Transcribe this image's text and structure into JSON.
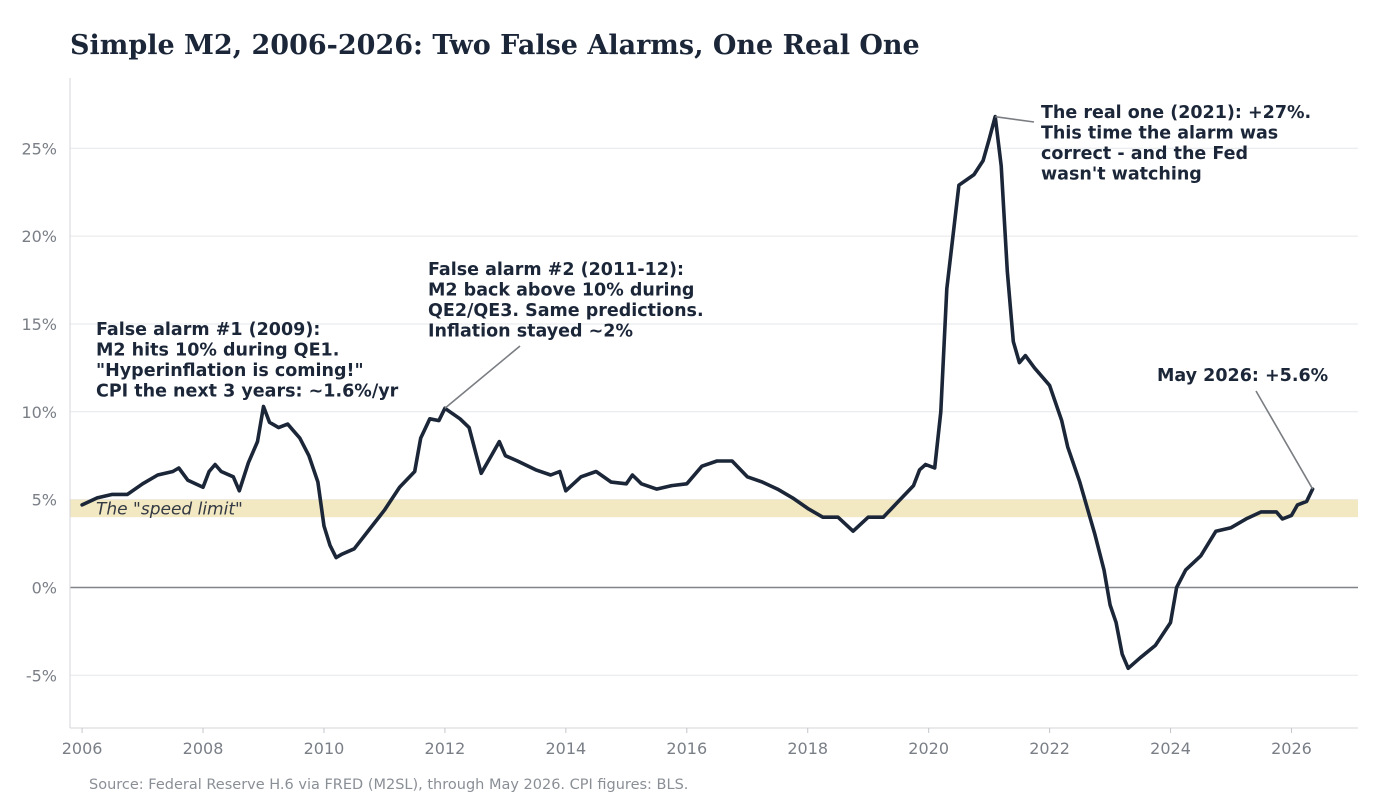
{
  "chart_data": {
    "type": "line",
    "title": "Simple M2, 2006-2026: Two False Alarms, One Real One",
    "xlabel": "",
    "ylabel": "",
    "xlim": [
      2005.8,
      2027.1
    ],
    "ylim": [
      -8,
      29
    ],
    "x_ticks": [
      2006,
      2008,
      2010,
      2012,
      2014,
      2016,
      2018,
      2020,
      2022,
      2024,
      2026
    ],
    "x_tick_labels": [
      "2006",
      "2008",
      "2010",
      "2012",
      "2014",
      "2016",
      "2018",
      "2020",
      "2022",
      "2024",
      "2026"
    ],
    "y_ticks": [
      -5,
      0,
      5,
      10,
      15,
      20,
      25
    ],
    "y_tick_labels": [
      "-5%",
      "0%",
      "5%",
      "10%",
      "15%",
      "20%",
      "25%"
    ],
    "grid": "horizontal",
    "line_color": "#1b2638",
    "band": {
      "y0": 4,
      "y1": 5,
      "label": "The \"speed limit\"",
      "color": "#f2e8c2"
    },
    "series": [
      {
        "x": [
          2006.0,
          2006.25,
          2006.5,
          2006.75,
          2007.0,
          2007.25,
          2007.5,
          2007.6,
          2007.75,
          2008.0,
          2008.1,
          2008.2,
          2008.3,
          2008.5,
          2008.6,
          2008.75,
          2008.9,
          2009.0,
          2009.1,
          2009.25,
          2009.4,
          2009.5,
          2009.6,
          2009.75,
          2009.9,
          2010.0,
          2010.1,
          2010.2,
          2010.3,
          2010.5,
          2010.75,
          2011.0,
          2011.25,
          2011.5,
          2011.6,
          2011.75,
          2011.9,
          2012.0,
          2012.25,
          2012.4,
          2012.5,
          2012.6,
          2012.75,
          2012.9,
          2013.0,
          2013.2,
          2013.5,
          2013.75,
          2013.9,
          2014.0,
          2014.25,
          2014.5,
          2014.75,
          2015.0,
          2015.1,
          2015.25,
          2015.5,
          2015.75,
          2016.0,
          2016.25,
          2016.5,
          2016.75,
          2017.0,
          2017.25,
          2017.5,
          2017.75,
          2018.0,
          2018.25,
          2018.5,
          2018.75,
          2019.0,
          2019.25,
          2019.5,
          2019.75,
          2019.85,
          2019.95,
          2020.1,
          2020.2,
          2020.3,
          2020.5,
          2020.75,
          2020.9,
          2021.0,
          2021.1,
          2021.2,
          2021.3,
          2021.4,
          2021.5,
          2021.6,
          2021.75,
          2022.0,
          2022.2,
          2022.3,
          2022.5,
          2022.75,
          2022.9,
          2023.0,
          2023.1,
          2023.2,
          2023.3,
          2023.5,
          2023.75,
          2024.0,
          2024.1,
          2024.25,
          2024.5,
          2024.75,
          2025.0,
          2025.25,
          2025.5,
          2025.75,
          2025.85,
          2026.0,
          2026.1,
          2026.25,
          2026.35
        ],
        "values": [
          4.7,
          5.1,
          5.3,
          5.3,
          5.9,
          6.4,
          6.6,
          6.8,
          6.1,
          5.7,
          6.6,
          7.0,
          6.6,
          6.3,
          5.5,
          7.1,
          8.3,
          10.3,
          9.4,
          9.1,
          9.3,
          8.9,
          8.5,
          7.5,
          6.0,
          3.5,
          2.4,
          1.7,
          1.9,
          2.2,
          3.3,
          4.4,
          5.7,
          6.6,
          8.5,
          9.6,
          9.5,
          10.2,
          9.6,
          9.1,
          7.8,
          6.5,
          7.4,
          8.3,
          7.5,
          7.2,
          6.7,
          6.4,
          6.6,
          5.5,
          6.3,
          6.6,
          6.0,
          5.9,
          6.4,
          5.9,
          5.6,
          5.8,
          5.9,
          6.9,
          7.2,
          7.2,
          6.3,
          6.0,
          5.6,
          5.1,
          4.5,
          4.0,
          4.0,
          3.2,
          4.0,
          4.0,
          4.9,
          5.8,
          6.7,
          7.0,
          6.8,
          10.0,
          17.0,
          22.9,
          23.5,
          24.3,
          25.5,
          26.8,
          24.0,
          18.0,
          14.0,
          12.8,
          13.2,
          12.5,
          11.5,
          9.5,
          8.0,
          6.0,
          3.0,
          1.0,
          -1.0,
          -2.0,
          -3.8,
          -4.6,
          -4.0,
          -3.3,
          -2.0,
          0.0,
          1.0,
          1.8,
          3.2,
          3.4,
          3.9,
          4.3,
          4.3,
          3.9,
          4.1,
          4.7,
          4.9,
          5.6
        ]
      }
    ],
    "annotations": [
      {
        "lines": [
          "False alarm #1 (2009):",
          "M2 hits 10% during QE1.",
          "\"Hyperinflation is coming!\"",
          "CPI the next 3 years: ~1.6%/yr"
        ],
        "point": [
          2009.0,
          10.3
        ],
        "arrow": false
      },
      {
        "lines": [
          "False alarm #2 (2011-12):",
          "M2 back above 10% during",
          "QE2/QE3. Same predictions.",
          "Inflation stayed ~2%"
        ],
        "point": [
          2012.0,
          10.2
        ],
        "arrow": true
      },
      {
        "lines": [
          "The real one (2021): +27%.",
          "This time the alarm was",
          "correct - and the Fed",
          "wasn't watching"
        ],
        "point": [
          2021.1,
          26.8
        ],
        "arrow": true
      },
      {
        "lines": [
          "May 2026: +5.6%"
        ],
        "point": [
          2026.35,
          5.6
        ],
        "arrow": true
      }
    ],
    "source": "Source: Federal Reserve H.6 via FRED (M2SL), through May 2026. CPI figures: BLS."
  }
}
